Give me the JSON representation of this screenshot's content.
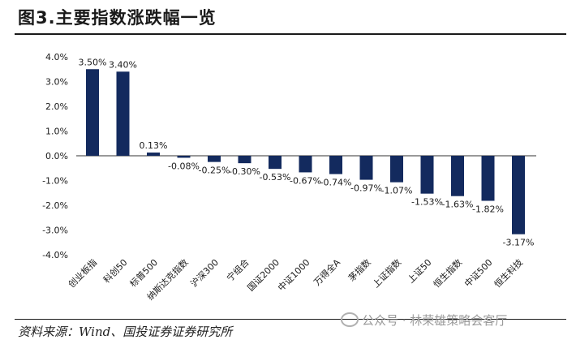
{
  "header": {
    "title": "图3.主要指数涨跌幅一览"
  },
  "footer": {
    "source": "资料来源：Wind、国投证券证券研究所",
    "watermark": "公众号 · 林荣雄策略会客厅"
  },
  "chart_data": {
    "type": "bar",
    "categories": [
      "创业板指",
      "科创50",
      "标普500",
      "纳斯达克指数",
      "沪深300",
      "宁组合",
      "国证2000",
      "中证1000",
      "万得全A",
      "茅指数",
      "上证指数",
      "上证50",
      "恒生指数",
      "中证500",
      "恒生科技"
    ],
    "values": [
      3.5,
      3.4,
      0.13,
      -0.08,
      -0.25,
      -0.3,
      -0.53,
      -0.67,
      -0.74,
      -0.97,
      -1.07,
      -1.53,
      -1.63,
      -1.82,
      -3.17
    ],
    "data_labels": [
      "3.50%",
      "3.40%",
      "0.13%",
      "-0.08%",
      "-0.25%",
      "-0.30%",
      "-0.53%",
      "-0.67%",
      "-0.74%",
      "-0.97%",
      "-1.07%",
      "-1.53%",
      "-1.63%",
      "-1.82%",
      "-3.17%"
    ],
    "ylim": [
      -4.0,
      4.0
    ],
    "yticks": [
      4.0,
      3.0,
      2.0,
      1.0,
      0.0,
      -1.0,
      -2.0,
      -3.0,
      -4.0
    ],
    "ytick_labels": [
      "4.0%",
      "3.0%",
      "2.0%",
      "1.0%",
      "0.0%",
      "-1.0%",
      "-2.0%",
      "-3.0%",
      "-4.0%"
    ],
    "grid": false,
    "bar_color": "#132a5e",
    "title": "",
    "xlabel": "",
    "ylabel": ""
  }
}
